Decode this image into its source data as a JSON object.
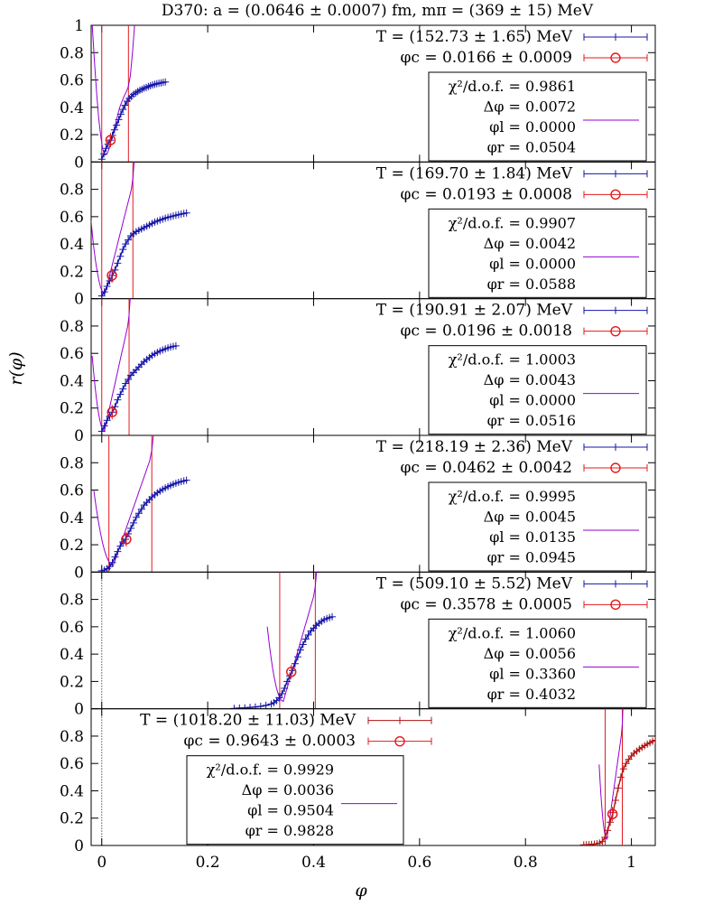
{
  "chart_data": {
    "type": "line",
    "title": "D370: a = (0.0646 ± 0.0007) fm, mπ = (369 ± 15) MeV",
    "xlabel": "φ",
    "ylabel": "r(φ)",
    "xlim": [
      -0.02,
      1.045
    ],
    "ylim": [
      0,
      1
    ],
    "xticks": [
      "0",
      "0.2",
      "0.4",
      "0.6",
      "0.8",
      "1"
    ],
    "yticks": [
      "0",
      "0.2",
      "0.4",
      "0.6",
      "0.8",
      "1"
    ],
    "yticks_inner": [
      "0",
      "0.2",
      "0.4",
      "0.6",
      "0.8"
    ],
    "colors": {
      "data": "#1515a8",
      "center": "#e41a1c",
      "fit": "#9400d3",
      "bound": "#e41a1c"
    },
    "panels": [
      {
        "temperature_label": "T = (152.73 ± 1.65) MeV",
        "phic_label": "φc = 0.0166 ± 0.0009",
        "chi2_label": "χ²/d.o.f. = 0.9861",
        "dphi_label": "Δφ = 0.0072",
        "phil_label": "φl = 0.0000",
        "phir_label": "φr = 0.0504",
        "legend_position": "top-right",
        "data_color": "#1515a8",
        "phi_c": 0.0166,
        "r_c": 0.16,
        "phi_l": 0.0,
        "phi_r": 0.0504,
        "curve_x": [
          0.0,
          0.004,
          0.008,
          0.012,
          0.016,
          0.02,
          0.024,
          0.028,
          0.032,
          0.036,
          0.04,
          0.044,
          0.048,
          0.052,
          0.056,
          0.06,
          0.064,
          0.068,
          0.072,
          0.076,
          0.08,
          0.084,
          0.088,
          0.092,
          0.096,
          0.1,
          0.104,
          0.108,
          0.112,
          0.116,
          0.12
        ],
        "curve_y": [
          0.02,
          0.06,
          0.1,
          0.13,
          0.16,
          0.195,
          0.235,
          0.27,
          0.31,
          0.35,
          0.385,
          0.415,
          0.445,
          0.465,
          0.48,
          0.495,
          0.505,
          0.515,
          0.525,
          0.532,
          0.54,
          0.545,
          0.552,
          0.558,
          0.564,
          0.568,
          0.572,
          0.576,
          0.579,
          0.582,
          0.585
        ],
        "fit_x": [
          -0.018,
          -0.014,
          -0.01,
          -0.006,
          -0.002,
          0.002,
          0.006,
          0.01,
          0.014,
          0.018,
          0.022,
          0.026,
          0.03,
          0.034,
          0.038,
          0.042,
          0.046,
          0.05,
          0.054,
          0.058,
          0.062
        ],
        "fit_y": [
          1.0,
          0.75,
          0.52,
          0.33,
          0.19,
          0.09,
          0.05,
          0.06,
          0.1,
          0.16,
          0.22,
          0.28,
          0.34,
          0.4,
          0.44,
          0.48,
          0.51,
          0.55,
          0.63,
          0.8,
          1.0
        ]
      },
      {
        "temperature_label": "T = (169.70 ± 1.84) MeV",
        "phic_label": "φc = 0.0193 ± 0.0008",
        "chi2_label": "χ²/d.o.f. = 0.9907",
        "dphi_label": "Δφ = 0.0042",
        "phil_label": "φl = 0.0000",
        "phir_label": "φr = 0.0588",
        "legend_position": "top-right",
        "data_color": "#1515a8",
        "phi_c": 0.0193,
        "r_c": 0.17,
        "phi_l": 0.0,
        "phi_r": 0.0588,
        "curve_x": [
          0.0,
          0.005,
          0.01,
          0.015,
          0.02,
          0.025,
          0.03,
          0.035,
          0.04,
          0.045,
          0.05,
          0.055,
          0.06,
          0.065,
          0.07,
          0.075,
          0.08,
          0.085,
          0.09,
          0.095,
          0.1,
          0.105,
          0.11,
          0.115,
          0.12,
          0.125,
          0.13,
          0.135,
          0.14,
          0.145,
          0.15,
          0.155,
          0.16
        ],
        "curve_y": [
          0.02,
          0.05,
          0.09,
          0.13,
          0.17,
          0.21,
          0.26,
          0.31,
          0.36,
          0.4,
          0.43,
          0.46,
          0.475,
          0.49,
          0.5,
          0.51,
          0.52,
          0.53,
          0.54,
          0.55,
          0.56,
          0.568,
          0.575,
          0.582,
          0.589,
          0.595,
          0.6,
          0.605,
          0.61,
          0.615,
          0.619,
          0.623,
          0.627
        ]
      },
      {
        "temperature_label": "T = (190.91 ± 2.07) MeV",
        "phic_label": "φc = 0.0196 ± 0.0018",
        "chi2_label": "χ²/d.o.f. = 1.0003",
        "dphi_label": "Δφ = 0.0043",
        "phil_label": "φl = 0.0000",
        "phir_label": "φr = 0.0516",
        "legend_position": "top-right",
        "data_color": "#1515a8",
        "phi_c": 0.0196,
        "r_c": 0.17,
        "phi_l": 0.0,
        "phi_r": 0.0516,
        "curve_x": [
          0.0,
          0.005,
          0.01,
          0.015,
          0.02,
          0.025,
          0.03,
          0.035,
          0.04,
          0.045,
          0.05,
          0.055,
          0.06,
          0.065,
          0.07,
          0.075,
          0.08,
          0.085,
          0.09,
          0.095,
          0.1,
          0.105,
          0.11,
          0.115,
          0.12,
          0.125,
          0.13,
          0.135,
          0.14
        ],
        "curve_y": [
          0.03,
          0.07,
          0.11,
          0.14,
          0.17,
          0.21,
          0.26,
          0.3,
          0.34,
          0.38,
          0.41,
          0.44,
          0.46,
          0.48,
          0.5,
          0.52,
          0.54,
          0.555,
          0.57,
          0.585,
          0.597,
          0.607,
          0.617,
          0.625,
          0.633,
          0.64,
          0.646,
          0.651,
          0.655
        ]
      },
      {
        "temperature_label": "T = (218.19 ± 2.36) MeV",
        "phic_label": "φc = 0.0462 ± 0.0042",
        "chi2_label": "χ²/d.o.f. = 0.9995",
        "dphi_label": "Δφ = 0.0045",
        "phil_label": "φl = 0.0135",
        "phir_label": "φr = 0.0945",
        "legend_position": "top-right",
        "data_color": "#1515a8",
        "phi_c": 0.0462,
        "r_c": 0.24,
        "phi_l": 0.0135,
        "phi_r": 0.0945,
        "curve_x": [
          0.0,
          0.005,
          0.01,
          0.015,
          0.02,
          0.025,
          0.03,
          0.035,
          0.04,
          0.045,
          0.05,
          0.055,
          0.06,
          0.065,
          0.07,
          0.075,
          0.08,
          0.085,
          0.09,
          0.095,
          0.1,
          0.105,
          0.11,
          0.115,
          0.12,
          0.125,
          0.13,
          0.135,
          0.14,
          0.145,
          0.15,
          0.155,
          0.16
        ],
        "curve_y": [
          0.01,
          0.015,
          0.025,
          0.04,
          0.07,
          0.11,
          0.15,
          0.19,
          0.22,
          0.24,
          0.28,
          0.32,
          0.36,
          0.4,
          0.43,
          0.46,
          0.49,
          0.51,
          0.53,
          0.55,
          0.565,
          0.58,
          0.593,
          0.605,
          0.615,
          0.625,
          0.634,
          0.642,
          0.65,
          0.656,
          0.662,
          0.667,
          0.672
        ]
      },
      {
        "temperature_label": "T = (509.10 ± 5.52) MeV",
        "phic_label": "φc = 0.3578 ± 0.0005",
        "chi2_label": "χ²/d.o.f. = 1.0060",
        "dphi_label": "Δφ = 0.0056",
        "phil_label": "φl = 0.3360",
        "phir_label": "φr = 0.4032",
        "legend_position": "top-right",
        "data_color": "#1515a8",
        "phi_c": 0.3578,
        "r_c": 0.27,
        "phi_l": 0.336,
        "phi_r": 0.4032,
        "curve_x": [
          0.25,
          0.26,
          0.27,
          0.28,
          0.29,
          0.3,
          0.31,
          0.32,
          0.325,
          0.33,
          0.335,
          0.34,
          0.345,
          0.35,
          0.355,
          0.36,
          0.365,
          0.37,
          0.375,
          0.38,
          0.385,
          0.39,
          0.395,
          0.4,
          0.405,
          0.41,
          0.415,
          0.42,
          0.425,
          0.43,
          0.435
        ],
        "curve_y": [
          0.003,
          0.005,
          0.007,
          0.01,
          0.013,
          0.018,
          0.025,
          0.035,
          0.045,
          0.06,
          0.08,
          0.11,
          0.15,
          0.2,
          0.24,
          0.28,
          0.33,
          0.38,
          0.43,
          0.47,
          0.51,
          0.54,
          0.57,
          0.59,
          0.61,
          0.625,
          0.64,
          0.652,
          0.66,
          0.667,
          0.673
        ]
      },
      {
        "temperature_label": "T = (1018.20 ± 11.03) MeV",
        "phic_label": "φc = 0.9643 ± 0.0003",
        "chi2_label": "χ²/d.o.f. = 0.9929",
        "dphi_label": "Δφ = 0.0036",
        "phil_label": "φl = 0.9504",
        "phir_label": "φr = 0.9828",
        "legend_position": "top-left",
        "data_color": "#b01515",
        "phi_c": 0.9643,
        "r_c": 0.23,
        "phi_l": 0.9504,
        "phi_r": 0.9828,
        "curve_x": [
          0.91,
          0.915,
          0.92,
          0.925,
          0.93,
          0.935,
          0.94,
          0.945,
          0.95,
          0.955,
          0.96,
          0.965,
          0.97,
          0.975,
          0.98,
          0.985,
          0.99,
          0.995,
          1.0,
          1.005,
          1.01,
          1.015,
          1.02,
          1.025,
          1.03,
          1.035,
          1.04,
          1.045
        ],
        "curve_y": [
          0.005,
          0.006,
          0.007,
          0.008,
          0.01,
          0.013,
          0.018,
          0.03,
          0.06,
          0.11,
          0.17,
          0.24,
          0.33,
          0.42,
          0.5,
          0.56,
          0.6,
          0.63,
          0.655,
          0.675,
          0.69,
          0.705,
          0.718,
          0.73,
          0.742,
          0.752,
          0.762,
          0.77
        ]
      }
    ]
  }
}
